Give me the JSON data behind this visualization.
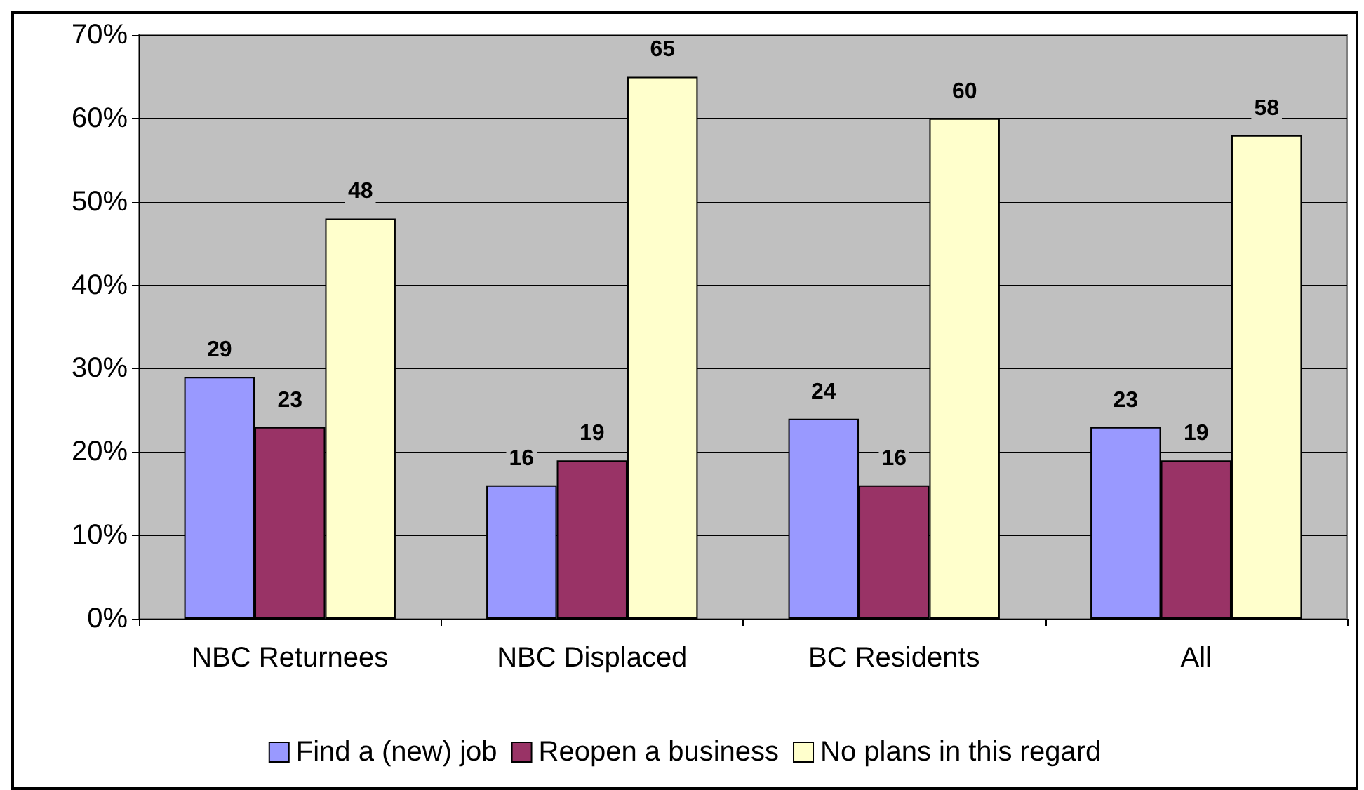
{
  "chart_data": {
    "type": "bar",
    "categories": [
      "NBC Returnees",
      "NBC Displaced",
      "BC Residents",
      "All"
    ],
    "series": [
      {
        "name": "Find a (new) job",
        "color": "#9999ff",
        "values": [
          29,
          16,
          24,
          23
        ]
      },
      {
        "name": "Reopen a business",
        "color": "#993366",
        "values": [
          23,
          19,
          16,
          19
        ]
      },
      {
        "name": "No plans in this regard",
        "color": "#ffffcc",
        "values": [
          48,
          65,
          60,
          58
        ]
      }
    ],
    "ylim": [
      0,
      70
    ],
    "yticks": [
      {
        "value": 0,
        "label": "0%"
      },
      {
        "value": 10,
        "label": "10%"
      },
      {
        "value": 20,
        "label": "20%"
      },
      {
        "value": 30,
        "label": "30%"
      },
      {
        "value": 40,
        "label": "40%"
      },
      {
        "value": 50,
        "label": "50%"
      },
      {
        "value": 60,
        "label": "60%"
      },
      {
        "value": 70,
        "label": "70%"
      }
    ],
    "grid": "y",
    "legend": "bottom",
    "data_labels": true
  }
}
